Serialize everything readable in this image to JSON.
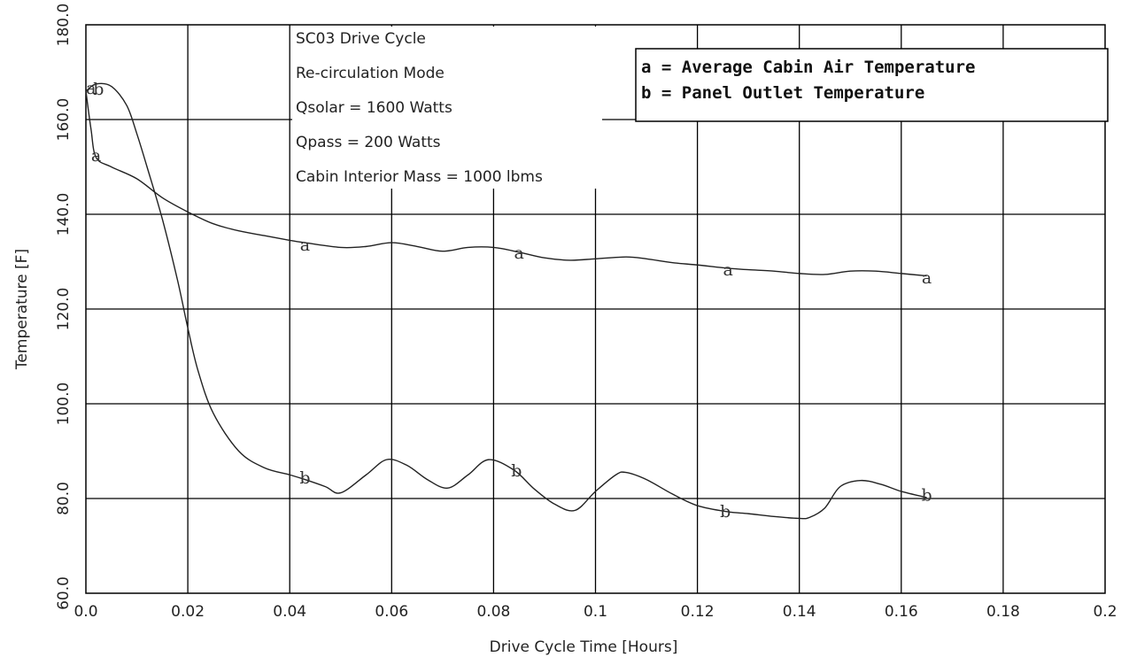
{
  "chart_data": {
    "type": "line",
    "xlabel": "Drive Cycle Time  [Hours]",
    "ylabel": "Temperature  [F]",
    "xlim": [
      0,
      0.2
    ],
    "ylim": [
      60,
      180
    ],
    "x_ticks": [
      "0.0",
      "0.02",
      "0.04",
      "0.06",
      "0.08",
      "0.1",
      "0.12",
      "0.14",
      "0.16",
      "0.18",
      "0.2"
    ],
    "y_ticks": [
      "60.0",
      "80.0",
      "100.0",
      "120.0",
      "140.0",
      "160.0",
      "180.0"
    ],
    "grid": true,
    "annotations": [
      "SC03 Drive Cycle",
      "Re-circulation Mode",
      "Qsolar = 1600 Watts",
      "Qpass = 200 Watts",
      "Cabin Interior Mass = 1000 lbms"
    ],
    "legend": {
      "placement": "top-right",
      "entries": [
        "a = Average Cabin Air Temperature",
        "b = Panel Outlet Temperature"
      ]
    },
    "series": [
      {
        "name": "a",
        "label": "a = Average Cabin Air Temperature",
        "x": [
          0,
          0.001,
          0.002,
          0.005,
          0.01,
          0.015,
          0.02,
          0.025,
          0.03,
          0.035,
          0.04,
          0.043,
          0.05,
          0.055,
          0.06,
          0.065,
          0.07,
          0.075,
          0.08,
          0.085,
          0.09,
          0.095,
          0.1,
          0.106,
          0.11,
          0.115,
          0.12,
          0.126,
          0.13,
          0.135,
          0.14,
          0.145,
          0.15,
          0.155,
          0.16,
          0.165
        ],
        "y": [
          166,
          158,
          152,
          150,
          147.5,
          143.5,
          140.5,
          138,
          136.5,
          135.5,
          134.5,
          134,
          133,
          133.2,
          134,
          133.2,
          132.2,
          133,
          133,
          132,
          130.8,
          130.3,
          130.6,
          131,
          130.6,
          129.8,
          129.3,
          128.6,
          128.3,
          128,
          127.5,
          127.3,
          128,
          128,
          127.5,
          127
        ]
      },
      {
        "name": "b",
        "label": "b = Panel Outlet Temperature",
        "x": [
          0,
          0.002,
          0.005,
          0.008,
          0.01,
          0.012,
          0.015,
          0.018,
          0.02,
          0.022,
          0.025,
          0.03,
          0.035,
          0.04,
          0.043,
          0.047,
          0.05,
          0.055,
          0.059,
          0.063,
          0.067,
          0.071,
          0.075,
          0.079,
          0.084,
          0.088,
          0.092,
          0.096,
          0.1,
          0.104,
          0.106,
          0.11,
          0.115,
          0.12,
          0.126,
          0.13,
          0.135,
          0.14,
          0.142,
          0.145,
          0.148,
          0.152,
          0.156,
          0.16,
          0.165
        ],
        "y": [
          166,
          167.5,
          167,
          163,
          157,
          150,
          139,
          126,
          116,
          107,
          98,
          90,
          86.5,
          85,
          84,
          82.5,
          81.2,
          85,
          88.2,
          87,
          84,
          82.2,
          85,
          88.2,
          86,
          82,
          78.8,
          77.5,
          81.5,
          85,
          85.5,
          84,
          81,
          78.5,
          77.2,
          76.8,
          76.2,
          75.8,
          76,
          78,
          82.5,
          83.8,
          83,
          81.5,
          80.2
        ]
      }
    ],
    "markers": [
      {
        "series": "a",
        "text": "a",
        "x": 0.001,
        "y": 166.5
      },
      {
        "series": "a",
        "text": "a",
        "x": 0.002,
        "y": 152.3
      },
      {
        "series": "a",
        "text": "a",
        "x": 0.043,
        "y": 133.5
      },
      {
        "series": "a",
        "text": "a",
        "x": 0.085,
        "y": 131.8
      },
      {
        "series": "a",
        "text": "a",
        "x": 0.126,
        "y": 128.2
      },
      {
        "series": "a",
        "text": "a",
        "x": 0.165,
        "y": 126.5
      },
      {
        "series": "b",
        "text": "b",
        "x": 0.0025,
        "y": 166.4
      },
      {
        "series": "b",
        "text": "b",
        "x": 0.043,
        "y": 84.3
      },
      {
        "series": "b",
        "text": "b",
        "x": 0.0845,
        "y": 85.8
      },
      {
        "series": "b",
        "text": "b",
        "x": 0.1255,
        "y": 77.2
      },
      {
        "series": "b",
        "text": "b",
        "x": 0.165,
        "y": 80.7
      }
    ]
  }
}
